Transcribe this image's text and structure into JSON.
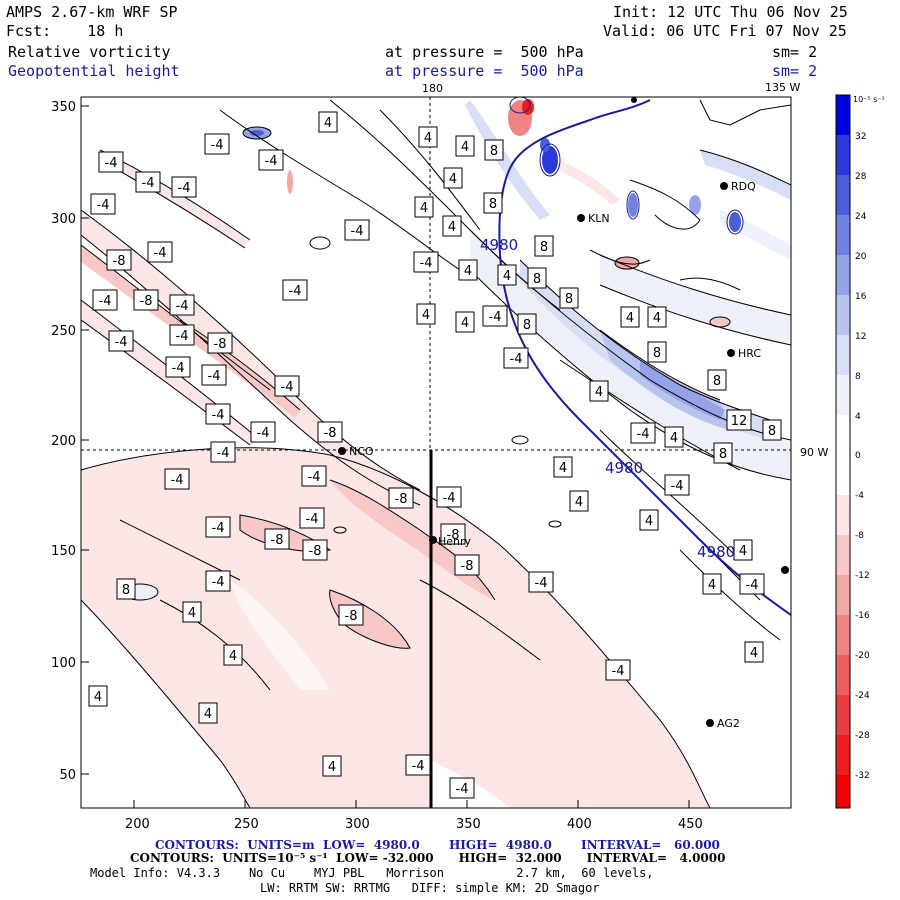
{
  "header": {
    "title": "AMPS 2.67-km WRF SP",
    "fcst": "Fcst:    18 h",
    "field1": "Relative vorticity",
    "field2": "Geopotential height",
    "init": "Init: 12 UTC Thu 06 Nov 25",
    "valid": "Valid: 06 UTC Fri 07 Nov 25",
    "pressure1": "at pressure =  500 hPa",
    "pressure2": "at pressure =  500 hPa",
    "sm1": "sm= 2",
    "sm2": "sm= 2"
  },
  "map": {
    "top_label_180": "180",
    "top_label_135w": "135 W",
    "right_label_90w": "90 W",
    "x_ticks": [
      "200",
      "250",
      "300",
      "350",
      "400",
      "450"
    ],
    "y_ticks": [
      "350",
      "300",
      "250",
      "200",
      "150",
      "100",
      "50"
    ],
    "stations": [
      "NCO",
      "Henry",
      "KLN",
      "HRC",
      "RDQ",
      "AG2"
    ],
    "height_labels": [
      "4980",
      "4980",
      "4980"
    ],
    "vort_labels": [
      "-4",
      "-8",
      "4",
      "8",
      "12"
    ]
  },
  "colorbar": {
    "unit": "10⁻⁵ s⁻¹",
    "ticks": [
      "32",
      "28",
      "24",
      "20",
      "16",
      "12",
      "8",
      "4",
      "0",
      "-4",
      "-8",
      "-12",
      "-16",
      "-20",
      "-24",
      "-28",
      "-32"
    ],
    "colors": {
      "c32": "#0000e0",
      "c28": "#2a3ad8",
      "c24": "#4a5ed8",
      "c20": "#6f82e0",
      "c16": "#95a4e8",
      "c12": "#b8c4ee",
      "c8": "#d8def5",
      "c4": "#eef0fa",
      "w": "#ffffff",
      "n4": "#fde6e6",
      "n8": "#f8c8c8",
      "n12": "#f3a8a8",
      "n16": "#ee8484",
      "n20": "#ea6060",
      "n24": "#e84040",
      "n28": "#e82020",
      "n32": "#f00000"
    }
  },
  "footer": {
    "line1": "CONTOURS:  UNITS=m  LOW=  4980.0       HIGH=  4980.0       INTERVAL=   60.000",
    "line2": "CONTOURS:  UNITS=10⁻⁵ s⁻¹  LOW= -32.000      HIGH=  32.000      INTERVAL=   4.0000",
    "line3": "Model Info: V4.3.3    No Cu    MYJ PBL   Morrison          2.7 km,  60 levels,",
    "line4": "LW: RRTM SW: RRTMG   DIFF: simple KM: 2D Smagor"
  }
}
